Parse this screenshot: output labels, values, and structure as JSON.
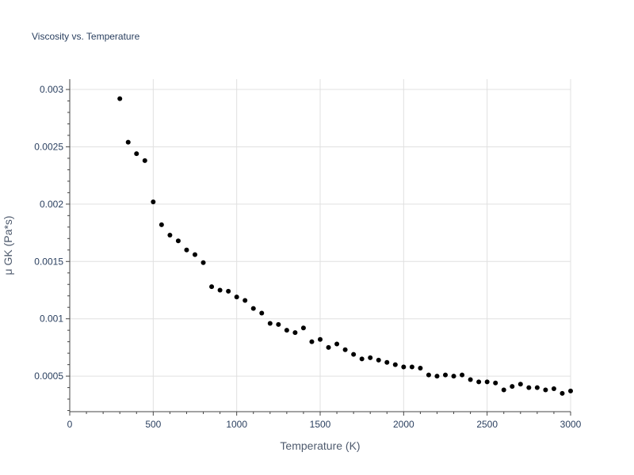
{
  "chart_data": {
    "type": "scatter",
    "title": "Viscosity vs. Temperature",
    "xlabel": "Temperature (K)",
    "ylabel": "μ GK (Pa*s)",
    "xlim": [
      0,
      3000
    ],
    "ylim": [
      0.00019,
      0.00309
    ],
    "x_ticks": [
      {
        "value": 0,
        "label": "0"
      },
      {
        "value": 500,
        "label": "500"
      },
      {
        "value": 1000,
        "label": "1000"
      },
      {
        "value": 1500,
        "label": "1500"
      },
      {
        "value": 2000,
        "label": "2000"
      },
      {
        "value": 2500,
        "label": "2500"
      },
      {
        "value": 3000,
        "label": "3000"
      }
    ],
    "y_ticks": [
      {
        "value": 0.0005,
        "label": "0.0005"
      },
      {
        "value": 0.001,
        "label": "0.001"
      },
      {
        "value": 0.0015,
        "label": "0.0015"
      },
      {
        "value": 0.002,
        "label": "0.002"
      },
      {
        "value": 0.0025,
        "label": "0.0025"
      },
      {
        "value": 0.003,
        "label": "0.003"
      }
    ],
    "grid": true,
    "marker_color": "#000000",
    "grid_color": "#e0e0e0",
    "axis_color": "#444444",
    "text_color": "#2a3f5f",
    "series": [
      {
        "x": [
          300,
          350,
          400,
          450,
          500,
          550,
          600,
          650,
          700,
          750,
          800,
          850,
          900,
          950,
          1000,
          1050,
          1100,
          1150,
          1200,
          1250,
          1300,
          1350,
          1400,
          1450,
          1500,
          1550,
          1600,
          1650,
          1700,
          1750,
          1800,
          1850,
          1900,
          1950,
          2000,
          2050,
          2100,
          2150,
          2200,
          2250,
          2300,
          2350,
          2400,
          2450,
          2500,
          2550,
          2600,
          2650,
          2700,
          2750,
          2800,
          2850,
          2900,
          2950,
          3000
        ],
        "y": [
          0.00292,
          0.00254,
          0.00244,
          0.00238,
          0.00202,
          0.00182,
          0.00173,
          0.00168,
          0.0016,
          0.00156,
          0.00149,
          0.00128,
          0.00125,
          0.00124,
          0.00119,
          0.00116,
          0.00109,
          0.00105,
          0.00096,
          0.00095,
          0.0009,
          0.00088,
          0.00092,
          0.0008,
          0.00082,
          0.00075,
          0.00078,
          0.00073,
          0.00069,
          0.00065,
          0.00066,
          0.00064,
          0.00062,
          0.0006,
          0.00058,
          0.00058,
          0.00057,
          0.00051,
          0.0005,
          0.00051,
          0.0005,
          0.00051,
          0.00047,
          0.00045,
          0.00045,
          0.00044,
          0.00038,
          0.00041,
          0.00043,
          0.0004,
          0.0004,
          0.00038,
          0.00039,
          0.00035,
          0.00037
        ]
      }
    ]
  }
}
